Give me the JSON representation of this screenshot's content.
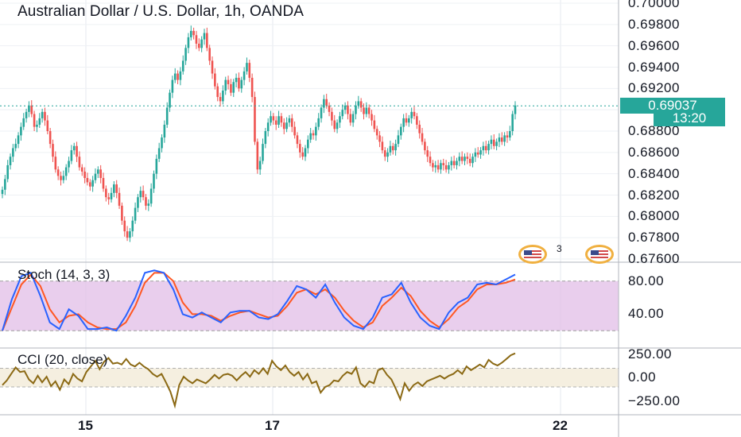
{
  "title": "Australian Dollar / U.S. Dollar, 1h, OANDA",
  "last_price": "0.69037",
  "countdown": "13:20",
  "colors": {
    "up": "#26a69a",
    "down": "#ef5350",
    "stoch_k": "#2962ff",
    "stoch_d": "#ff5722",
    "stoch_band": "#e1bee7",
    "cci_line": "#8b6914",
    "cci_band": "#f5efe0"
  },
  "events": [
    {
      "icon": "us-flag-icon",
      "count": "3"
    },
    {
      "icon": "us-flag-icon",
      "count": ""
    }
  ],
  "chart_data": [
    {
      "type": "candlestick",
      "title": "Australian Dollar / U.S. Dollar, 1h, OANDA",
      "ylim": [
        0.676,
        0.7
      ],
      "y_ticks": [
        "0.70000",
        "0.69800",
        "0.69600",
        "0.69400",
        "0.69200",
        "0.69000",
        "0.68800",
        "0.68600",
        "0.68400",
        "0.68200",
        "0.68000",
        "0.67800",
        "0.67600"
      ],
      "x_ticks": [
        "15",
        "17",
        "22"
      ],
      "close_series": [
        0.6825,
        0.6835,
        0.6848,
        0.6856,
        0.6864,
        0.6868,
        0.6876,
        0.6884,
        0.6892,
        0.6898,
        0.6904,
        0.6896,
        0.6884,
        0.6886,
        0.6892,
        0.6898,
        0.689,
        0.688,
        0.6868,
        0.6856,
        0.6844,
        0.6838,
        0.6834,
        0.6838,
        0.6846,
        0.6852,
        0.6862,
        0.6866,
        0.6856,
        0.6846,
        0.6842,
        0.6836,
        0.6832,
        0.6828,
        0.6834,
        0.684,
        0.6844,
        0.6836,
        0.6826,
        0.6818,
        0.6816,
        0.6822,
        0.683,
        0.6822,
        0.681,
        0.6796,
        0.6786,
        0.678,
        0.6786,
        0.6796,
        0.6808,
        0.6818,
        0.6824,
        0.6818,
        0.681,
        0.6812,
        0.6826,
        0.684,
        0.6854,
        0.6864,
        0.6874,
        0.6886,
        0.6902,
        0.6916,
        0.6928,
        0.6934,
        0.6928,
        0.6936,
        0.6946,
        0.6958,
        0.6968,
        0.6974,
        0.697,
        0.6962,
        0.6958,
        0.6966,
        0.6972,
        0.6958,
        0.6946,
        0.6934,
        0.6922,
        0.6912,
        0.6908,
        0.6918,
        0.6928,
        0.6924,
        0.6916,
        0.6926,
        0.693,
        0.692,
        0.6928,
        0.6936,
        0.6944,
        0.693,
        0.6912,
        0.687,
        0.6844,
        0.6852,
        0.6868,
        0.688,
        0.6888,
        0.6894,
        0.689,
        0.6886,
        0.6894,
        0.6888,
        0.6882,
        0.6888,
        0.6892,
        0.6884,
        0.6876,
        0.6868,
        0.686,
        0.6856,
        0.6864,
        0.6872,
        0.6878,
        0.6876,
        0.6884,
        0.6892,
        0.6902,
        0.691,
        0.6904,
        0.6898,
        0.689,
        0.6882,
        0.6888,
        0.6894,
        0.69,
        0.6904,
        0.6896,
        0.6888,
        0.6896,
        0.6904,
        0.6908,
        0.6902,
        0.6896,
        0.6902,
        0.6896,
        0.689,
        0.6882,
        0.6876,
        0.687,
        0.6862,
        0.6856,
        0.686,
        0.6866,
        0.6862,
        0.6868,
        0.6876,
        0.6884,
        0.6892,
        0.6888,
        0.6892,
        0.6898,
        0.6894,
        0.6886,
        0.6878,
        0.687,
        0.6862,
        0.6856,
        0.685,
        0.6846,
        0.6848,
        0.6844,
        0.685,
        0.6848,
        0.6844,
        0.6848,
        0.6852,
        0.6848,
        0.6852,
        0.6856,
        0.6852,
        0.6856,
        0.6854,
        0.685,
        0.6856,
        0.686,
        0.6858,
        0.6862,
        0.6866,
        0.6862,
        0.6868,
        0.6872,
        0.6866,
        0.687,
        0.6874,
        0.687,
        0.6876,
        0.6874,
        0.688,
        0.6896,
        0.6904
      ]
    },
    {
      "type": "line",
      "title": "Stoch (14, 3, 3)",
      "ylim": [
        0,
        100
      ],
      "band": [
        20,
        80
      ],
      "y_ticks": [
        "80.00",
        "40.00"
      ],
      "series": [
        {
          "name": "%K",
          "values": [
            20,
            58,
            86,
            90,
            62,
            30,
            22,
            46,
            38,
            22,
            22,
            24,
            20,
            38,
            60,
            90,
            93,
            90,
            70,
            40,
            36,
            42,
            36,
            30,
            42,
            44,
            44,
            36,
            34,
            40,
            56,
            74,
            70,
            60,
            76,
            54,
            36,
            26,
            22,
            36,
            60,
            64,
            78,
            54,
            36,
            26,
            22,
            42,
            54,
            60,
            76,
            78,
            76,
            82,
            88
          ]
        },
        {
          "name": "%D",
          "values": [
            20,
            48,
            76,
            88,
            74,
            46,
            30,
            38,
            40,
            30,
            24,
            22,
            22,
            30,
            50,
            78,
            90,
            90,
            80,
            54,
            40,
            40,
            38,
            32,
            38,
            42,
            44,
            40,
            36,
            38,
            50,
            66,
            70,
            64,
            70,
            60,
            44,
            32,
            24,
            30,
            50,
            60,
            72,
            62,
            44,
            32,
            24,
            34,
            48,
            56,
            70,
            76,
            76,
            78,
            82
          ]
        }
      ]
    },
    {
      "type": "line",
      "title": "CCI (20, close)",
      "ylim": [
        -380,
        300
      ],
      "band": [
        -100,
        100
      ],
      "y_ticks": [
        "250.00",
        "0.00",
        "−250.00"
      ],
      "series": [
        {
          "name": "CCI",
          "values": [
            -80,
            -30,
            40,
            110,
            60,
            70,
            -20,
            -60,
            20,
            -50,
            10,
            -90,
            -40,
            -130,
            -20,
            -70,
            40,
            -10,
            -40,
            60,
            120,
            180,
            90,
            170,
            210,
            150,
            160,
            140,
            200,
            140,
            120,
            160,
            120,
            90,
            40,
            10,
            40,
            -50,
            -150,
            -300,
            -80,
            10,
            -30,
            -60,
            -20,
            -40,
            -60,
            -20,
            30,
            -10,
            30,
            40,
            20,
            -30,
            20,
            60,
            10,
            80,
            40,
            100,
            40,
            180,
            120,
            80,
            130,
            60,
            20,
            60,
            -20,
            40,
            -60,
            -40,
            -160,
            -100,
            -80,
            -30,
            -40,
            20,
            60,
            40,
            110,
            -60,
            -100,
            -40,
            -60,
            80,
            100,
            30,
            -20,
            -120,
            -230,
            -60,
            -140,
            -80,
            -50,
            -90,
            -40,
            -20,
            0,
            20,
            -10,
            20,
            40,
            80,
            40,
            120,
            80,
            110,
            140,
            110,
            190,
            150,
            130,
            160,
            200,
            240,
            260
          ]
        }
      ]
    }
  ]
}
